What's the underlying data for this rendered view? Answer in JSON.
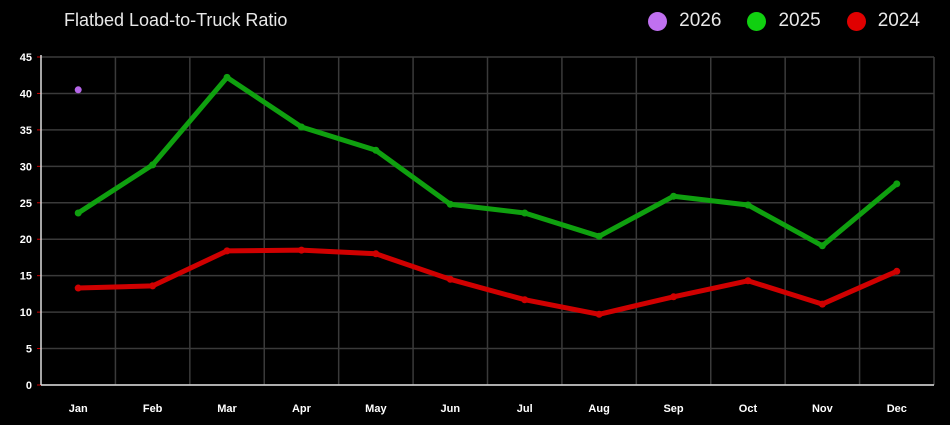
{
  "chart_data": {
    "type": "line",
    "title": "Flatbed Load-to-Truck Ratio",
    "xlabel": "",
    "ylabel": "",
    "ylim": [
      0,
      45
    ],
    "yticks": [
      0,
      5,
      10,
      15,
      20,
      25,
      30,
      35,
      40,
      45
    ],
    "categories": [
      "Jan",
      "Feb",
      "Mar",
      "Apr",
      "May",
      "Jun",
      "Jul",
      "Aug",
      "Sep",
      "Oct",
      "Nov",
      "Dec"
    ],
    "legend_position": "top-right",
    "grid": true,
    "series": [
      {
        "name": "2026",
        "color": "#b566e8",
        "values": [
          40.5,
          null,
          null,
          null,
          null,
          null,
          null,
          null,
          null,
          null,
          null,
          null
        ]
      },
      {
        "name": "2025",
        "color": "#0fa00f",
        "values": [
          23.6,
          30.2,
          42.2,
          35.4,
          32.2,
          24.8,
          23.6,
          20.4,
          25.9,
          24.7,
          19.1,
          27.6
        ]
      },
      {
        "name": "2024",
        "color": "#d00000",
        "values": [
          13.3,
          13.6,
          18.4,
          18.5,
          18.0,
          14.5,
          11.7,
          9.7,
          12.1,
          14.3,
          11.1,
          15.6
        ]
      }
    ]
  },
  "legend_colors": {
    "2026": "#c070f0",
    "2025": "#10d010",
    "2024": "#e00000"
  }
}
